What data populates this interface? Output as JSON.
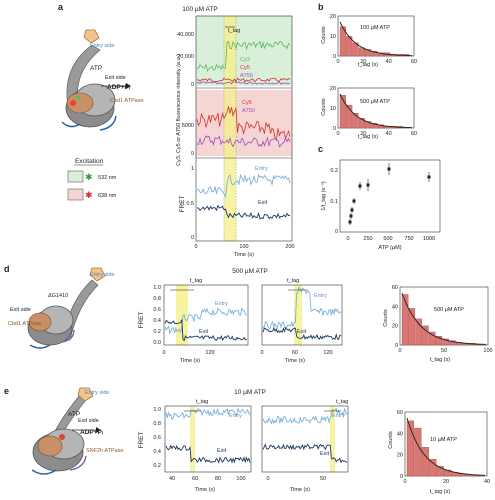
{
  "panels": {
    "a": {
      "letter": "a",
      "title": "100 µM ATP",
      "schematic_labels": {
        "entry": "Entry side",
        "exit": "Exit side",
        "adp": "ADP+Pᵢ",
        "atp": "ATP",
        "atpase": "Cbd1\nATPase"
      },
      "excitation": {
        "title": "Excitation",
        "green": "532 nm",
        "red": "638 nm"
      },
      "top": {
        "ylabel": "Cy3, Cy5 or A750 fluorescence intensity (a.u.)",
        "legend": [
          "Cy3",
          "Cy5",
          "A750"
        ],
        "ticks": [
          "40,000",
          "20,000",
          "0"
        ],
        "colors": [
          "#5bb85d",
          "#d0322d",
          "#a04ac0"
        ]
      },
      "mid": {
        "legend": [
          "Cy5",
          "A750"
        ],
        "ticks": [
          "5000",
          "0"
        ]
      },
      "fret": {
        "ylabel": "FRET",
        "labels": [
          "Entry",
          "Exit"
        ],
        "ticks": [
          "1",
          "0.5",
          "0"
        ],
        "xticks": [
          "0",
          "100",
          "200"
        ],
        "xlabel": "Time (s)",
        "tag": "t_tag"
      }
    },
    "b": {
      "letter": "b",
      "hist": [
        {
          "label": "100 µM ATP",
          "ylabel": "Counts",
          "xlabel": "t_tag (s)",
          "yticks": [
            "20",
            "10",
            "0"
          ],
          "xticks": [
            "0",
            "20",
            "40",
            "60"
          ],
          "bars": [
            18,
            12,
            8,
            5,
            4,
            3,
            2,
            2,
            1,
            1,
            1
          ]
        },
        {
          "label": "500 µM ATP",
          "ylabel": "Counts",
          "xlabel": "t_tag (s)",
          "yticks": [
            "20",
            "10",
            "0"
          ],
          "xticks": [
            "0",
            "20",
            "40",
            "60"
          ],
          "bars": [
            20,
            14,
            9,
            6,
            4,
            3,
            2,
            1,
            1,
            1,
            0
          ]
        }
      ]
    },
    "c": {
      "letter": "c",
      "ylabel": "1/t_tag (s⁻¹)",
      "xlabel": "ATP (µM)",
      "yticks": [
        "0.2",
        "0.1",
        "0"
      ],
      "xticks": [
        "0",
        "250",
        "500",
        "750",
        "1000"
      ]
    },
    "d": {
      "letter": "d",
      "title": "500 µM ATP",
      "schematic_labels": {
        "entry": "Entry side",
        "exit": "Exit side",
        "protein": "ΔG1410",
        "atpase": "Cbd1\nATPase"
      },
      "traces": [
        {
          "ylabel": "FRET",
          "yticks": [
            "1.0",
            "0.8",
            "0.6",
            "0.4",
            "0.2",
            "0.0"
          ],
          "xticks": [
            "0",
            "120"
          ],
          "xlabel": "Time (s)",
          "entry": "Entry",
          "exit": "Exit",
          "tag": "t_tag"
        },
        {
          "xticks": [
            "0",
            "60",
            "120"
          ],
          "xlabel": "Time (s)",
          "entry": "Entry",
          "exit": "Exit",
          "tag": "t_tag"
        }
      ],
      "hist": {
        "label": "500 µM ATP",
        "ylabel": "Counts",
        "xlabel": "t_tag (s)",
        "yticks": [
          "60",
          "40",
          "20",
          "0"
        ],
        "xticks": [
          "0",
          "50",
          "100"
        ],
        "bars": [
          58,
          42,
          30,
          22,
          15,
          10,
          7,
          5,
          3,
          2,
          2,
          1
        ]
      }
    },
    "e": {
      "letter": "e",
      "title": "10 µM ATP",
      "schematic_labels": {
        "entry": "Entry side",
        "exit": "Exit side",
        "adp": "ADP+Pᵢ",
        "atp": "ATP",
        "atpase": "SNF2h\nATPase"
      },
      "traces": [
        {
          "ylabel": "FRET",
          "yticks": [
            "1.0",
            "0.8",
            "0.6",
            "0.4",
            "0.2"
          ],
          "xticks": [
            "40",
            "60",
            "80",
            "100"
          ],
          "xlabel": "Time (s)",
          "entry": "Entry",
          "exit": "Exit",
          "tag": "t_tag"
        },
        {
          "xticks": [
            "0",
            "50"
          ],
          "xlabel": "Time (s)",
          "entry": "Entry",
          "exit": "Exit",
          "tag": "t_tag"
        }
      ],
      "hist": {
        "label": "10 µM ATP",
        "ylabel": "Counts",
        "xlabel": "t_tag (s)",
        "yticks": [
          "60",
          "40",
          "20",
          "0"
        ],
        "xticks": [
          "0",
          "20",
          "40"
        ],
        "bars": [
          46,
          40,
          24,
          14,
          8,
          5,
          3,
          2,
          1,
          1
        ]
      }
    }
  },
  "colors": {
    "entry": "#7ab0dc",
    "exit": "#1b3560",
    "band": "#f4f08a",
    "green_bg": "#d9efd9",
    "red_bg": "#f6d6d4",
    "bar": "#d97873",
    "fit": "#2a2a2a"
  }
}
